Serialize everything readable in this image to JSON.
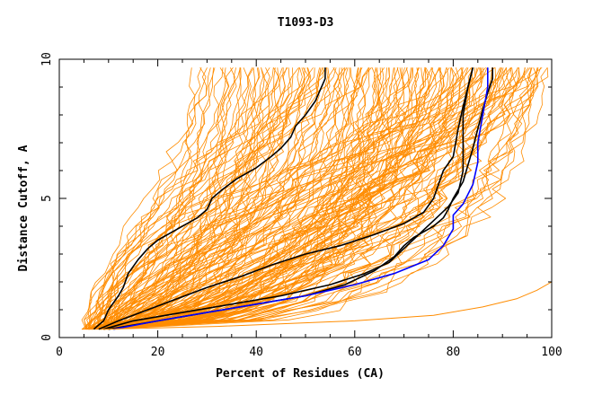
{
  "chart_data": {
    "type": "line",
    "title": "T1093-D3",
    "xlabel": "Percent of Residues (CA)",
    "ylabel": "Distance Cutoff, A",
    "xlim": [
      0,
      100
    ],
    "ylim": [
      0,
      10
    ],
    "xticks": [
      0,
      20,
      40,
      60,
      80,
      100
    ],
    "yticks": [
      0,
      5,
      10
    ],
    "grid": false,
    "colors": {
      "bulk": "#ff8c00",
      "black": "#000000",
      "blue": "#0000ff"
    },
    "series": [
      {
        "color": "black",
        "x": [
          7,
          9,
          10,
          12,
          13,
          14,
          16,
          18,
          20,
          23,
          26,
          28,
          30,
          31,
          33,
          36,
          40,
          43,
          45,
          47,
          48,
          50,
          52,
          53,
          54,
          54
        ],
        "y": [
          0.3,
          0.6,
          1.0,
          1.5,
          1.8,
          2.3,
          2.8,
          3.2,
          3.5,
          3.8,
          4.1,
          4.3,
          4.6,
          5.0,
          5.3,
          5.7,
          6.1,
          6.5,
          6.8,
          7.2,
          7.6,
          8.0,
          8.5,
          8.9,
          9.3,
          9.7
        ]
      },
      {
        "color": "black",
        "x": [
          8,
          12,
          18,
          24,
          30,
          37,
          43,
          50,
          57,
          64,
          70,
          74,
          76,
          77,
          78,
          80,
          81,
          82,
          83,
          84
        ],
        "y": [
          0.3,
          0.6,
          1.0,
          1.4,
          1.8,
          2.2,
          2.6,
          3.0,
          3.3,
          3.7,
          4.1,
          4.5,
          5.0,
          5.5,
          6.0,
          6.5,
          7.5,
          8.3,
          9.0,
          9.7
        ]
      },
      {
        "color": "black",
        "x": [
          9,
          15,
          25,
          35,
          45,
          55,
          62,
          67,
          70,
          73,
          76,
          79,
          81,
          82,
          82,
          82,
          83,
          84
        ],
        "y": [
          0.3,
          0.6,
          0.9,
          1.2,
          1.5,
          1.9,
          2.3,
          2.7,
          3.2,
          3.7,
          4.2,
          4.7,
          5.2,
          6.0,
          7.0,
          8.0,
          9.0,
          9.7
        ]
      },
      {
        "color": "black",
        "x": [
          10,
          20,
          30,
          40,
          50,
          58,
          64,
          68,
          70,
          72,
          74,
          76,
          78,
          79,
          80,
          82,
          83,
          84,
          85,
          86,
          87,
          88,
          88
        ],
        "y": [
          0.3,
          0.6,
          0.9,
          1.2,
          1.5,
          1.9,
          2.4,
          2.9,
          3.3,
          3.6,
          3.8,
          4.0,
          4.3,
          4.6,
          5.0,
          5.6,
          6.2,
          6.8,
          7.5,
          8.2,
          8.8,
          9.3,
          9.7
        ]
      },
      {
        "color": "blue",
        "x": [
          11,
          20,
          30,
          40,
          50,
          60,
          68,
          75,
          78,
          80,
          80,
          82,
          84,
          85,
          85,
          86,
          87,
          87
        ],
        "y": [
          0.3,
          0.6,
          0.9,
          1.2,
          1.5,
          1.9,
          2.3,
          2.8,
          3.3,
          3.9,
          4.4,
          4.8,
          5.5,
          6.3,
          7.0,
          8.0,
          9.0,
          9.7
        ]
      },
      {
        "color": "bulk",
        "x": [
          6,
          6,
          7
        ],
        "y": [
          0.3,
          0.5,
          0.7
        ]
      },
      {
        "color": "bulk",
        "x": [
          9,
          32,
          60,
          76,
          86,
          93,
          97,
          100,
          100
        ],
        "y": [
          0.3,
          0.4,
          0.6,
          0.8,
          1.1,
          1.4,
          1.7,
          2.0,
          2.3
        ]
      },
      {
        "color": "bulk",
        "x": [
          100,
          100
        ],
        "y": [
          2.3,
          9.7
        ]
      }
    ]
  }
}
